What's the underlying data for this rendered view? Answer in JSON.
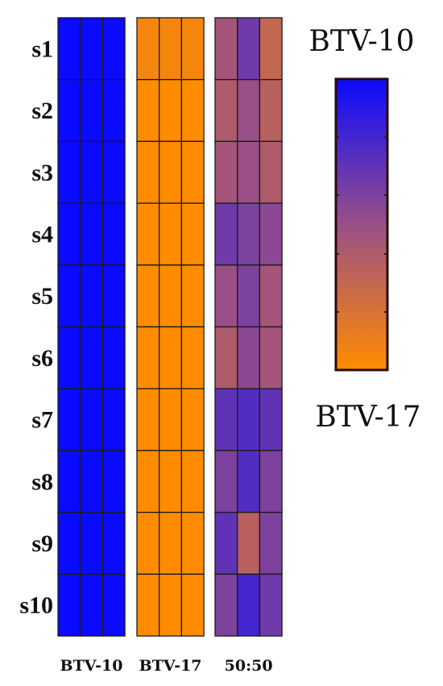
{
  "chart_data": {
    "type": "heatmap",
    "rows": [
      "s1",
      "s2",
      "s3",
      "s4",
      "s5",
      "s6",
      "s7",
      "s8",
      "s9",
      "s10"
    ],
    "groups": [
      {
        "label": "BTV-10",
        "values": [
          [
            0,
            0,
            0
          ],
          [
            0,
            0,
            0
          ],
          [
            0,
            0,
            0
          ],
          [
            0,
            0,
            0
          ],
          [
            0,
            0,
            0
          ],
          [
            0,
            0,
            0
          ],
          [
            0,
            0,
            0
          ],
          [
            0,
            0,
            0
          ],
          [
            0,
            0,
            0
          ],
          [
            0,
            0,
            0
          ]
        ]
      },
      {
        "label": "BTV-17",
        "values": [
          [
            0.95,
            0.95,
            0.95
          ],
          [
            1,
            1,
            1
          ],
          [
            1,
            1,
            1
          ],
          [
            1,
            1,
            1
          ],
          [
            1,
            1,
            1
          ],
          [
            1,
            1,
            1
          ],
          [
            1,
            1,
            1
          ],
          [
            1,
            1,
            1
          ],
          [
            1,
            1,
            1
          ],
          [
            1,
            1,
            1
          ]
        ]
      },
      {
        "label": "50:50",
        "values": [
          [
            0.55,
            0.35,
            0.7
          ],
          [
            0.6,
            0.5,
            0.65
          ],
          [
            0.55,
            0.5,
            0.6
          ],
          [
            0.35,
            0.4,
            0.45
          ],
          [
            0.5,
            0.4,
            0.55
          ],
          [
            0.6,
            0.45,
            0.55
          ],
          [
            0.3,
            0.25,
            0.3
          ],
          [
            0.4,
            0.25,
            0.4
          ],
          [
            0.3,
            0.65,
            0.4
          ],
          [
            0.4,
            0.2,
            0.35
          ]
        ]
      }
    ],
    "colorbar": {
      "top_label": "BTV-10",
      "bottom_label": "BTV-17",
      "low_color": "#0a0aff",
      "mid_color": "#9a4f86",
      "high_color": "#ff8c00"
    },
    "value_range": [
      0,
      1
    ]
  }
}
